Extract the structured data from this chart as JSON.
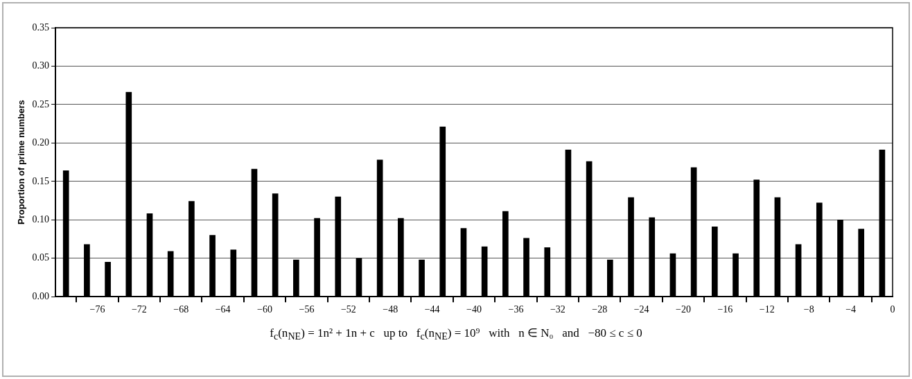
{
  "chart_data": {
    "type": "bar",
    "ylabel": "Proportion of prime numbers",
    "xlabel": "f$_{c}$(n$_{NE}$) = 1n² + 1n + c   up to   f$_{c}$(n$_{NE}$) = 10⁹   with   n ∈ N₀   and   −80 ≤ c ≤ 0",
    "x": [
      -79,
      -77,
      -75,
      -73,
      -71,
      -69,
      -67,
      -65,
      -63,
      -61,
      -59,
      -57,
      -55,
      -53,
      -51,
      -49,
      -47,
      -45,
      -43,
      -41,
      -39,
      -37,
      -35,
      -33,
      -31,
      -29,
      -27,
      -25,
      -23,
      -21,
      -19,
      -17,
      -15,
      -13,
      -11,
      -9,
      -7,
      -5,
      -3,
      -1
    ],
    "values": [
      0.164,
      0.068,
      0.045,
      0.266,
      0.108,
      0.059,
      0.124,
      0.08,
      0.061,
      0.166,
      0.134,
      0.048,
      0.102,
      0.13,
      0.05,
      0.178,
      0.102,
      0.048,
      0.221,
      0.089,
      0.065,
      0.111,
      0.076,
      0.064,
      0.191,
      0.176,
      0.048,
      0.129,
      0.103,
      0.056,
      0.168,
      0.091,
      0.056,
      0.152,
      0.129,
      0.068,
      0.122,
      0.1,
      0.088,
      0.191
    ],
    "color": "#000000",
    "xlim": [
      -80,
      0
    ],
    "xticks": [
      {
        "value": -80,
        "label": null
      },
      {
        "value": -76,
        "label": "−76"
      },
      {
        "value": -72,
        "label": "−72"
      },
      {
        "value": -68,
        "label": "−68"
      },
      {
        "value": -64,
        "label": "−64"
      },
      {
        "value": -60,
        "label": "−60"
      },
      {
        "value": -56,
        "label": "−56"
      },
      {
        "value": -52,
        "label": "−52"
      },
      {
        "value": -48,
        "label": "−48"
      },
      {
        "value": -44,
        "label": "−44"
      },
      {
        "value": -40,
        "label": "−40"
      },
      {
        "value": -36,
        "label": "−36"
      },
      {
        "value": -32,
        "label": "−32"
      },
      {
        "value": -28,
        "label": "−28"
      },
      {
        "value": -24,
        "label": "−24"
      },
      {
        "value": -20,
        "label": "−20"
      },
      {
        "value": -16,
        "label": "−16"
      },
      {
        "value": -12,
        "label": "−12"
      },
      {
        "value": -8,
        "label": "−8"
      },
      {
        "value": -4,
        "label": "−4"
      },
      {
        "value": 0,
        "label": "0"
      }
    ],
    "ylim": [
      0,
      0.35
    ],
    "yticks": [
      {
        "value": 0,
        "label": "0.00"
      },
      {
        "value": 0.05,
        "label": "0.05"
      },
      {
        "value": 0.1,
        "label": "0.10"
      },
      {
        "value": 0.15,
        "label": "0.15"
      },
      {
        "value": 0.2,
        "label": "0.20"
      },
      {
        "value": 0.25,
        "label": "0.25"
      },
      {
        "value": 0.3,
        "label": "0.30"
      },
      {
        "value": 0.35,
        "label": "0.35"
      }
    ],
    "grid": "y"
  }
}
